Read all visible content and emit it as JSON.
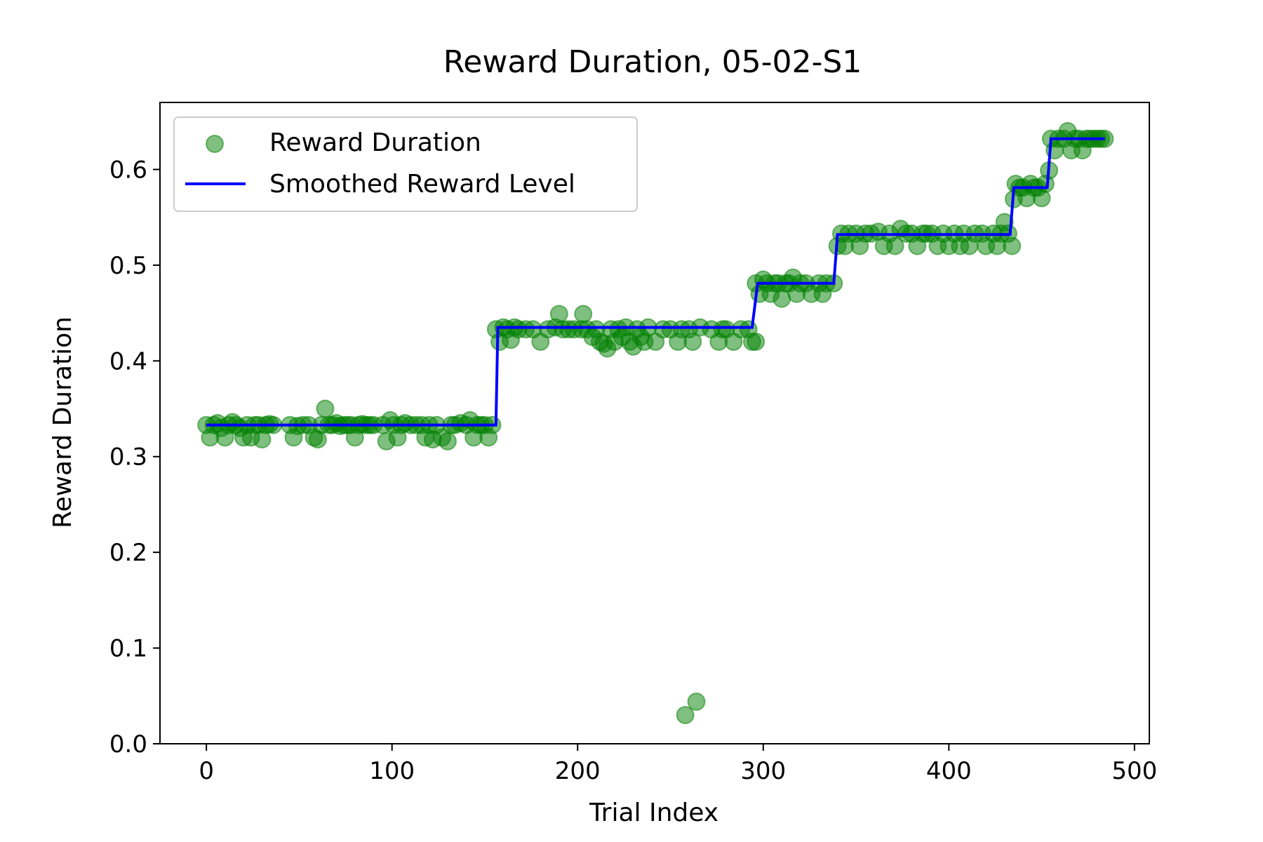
{
  "chart_data": {
    "type": "scatter",
    "title": "Reward Duration, 05-02-S1",
    "xlabel": "Trial Index",
    "ylabel": "Reward Duration",
    "xlim": [
      -25,
      508
    ],
    "ylim": [
      0.0,
      0.67
    ],
    "xticks": [
      0,
      100,
      200,
      300,
      400,
      500
    ],
    "yticks": [
      0.0,
      0.1,
      0.2,
      0.3,
      0.4,
      0.5,
      0.6
    ],
    "xtick_labels": [
      "0",
      "100",
      "200",
      "300",
      "400",
      "500"
    ],
    "ytick_labels": [
      "0.0",
      "0.1",
      "0.2",
      "0.3",
      "0.4",
      "0.5",
      "0.6"
    ],
    "grid": false,
    "legend": {
      "position": "top-left",
      "entries": [
        "Reward Duration",
        "Smoothed Reward Level"
      ]
    },
    "colors": {
      "scatter": "#008000",
      "line": "#0000ff"
    },
    "series": [
      {
        "name": "Reward Duration",
        "kind": "scatter",
        "points": [
          [
            0,
            0.333
          ],
          [
            2,
            0.32
          ],
          [
            4,
            0.333
          ],
          [
            6,
            0.335
          ],
          [
            8,
            0.33
          ],
          [
            10,
            0.32
          ],
          [
            12,
            0.333
          ],
          [
            14,
            0.336
          ],
          [
            16,
            0.333
          ],
          [
            18,
            0.33
          ],
          [
            20,
            0.32
          ],
          [
            22,
            0.333
          ],
          [
            24,
            0.32
          ],
          [
            26,
            0.333
          ],
          [
            28,
            0.333
          ],
          [
            30,
            0.318
          ],
          [
            32,
            0.333
          ],
          [
            34,
            0.334
          ],
          [
            36,
            0.333
          ],
          [
            45,
            0.333
          ],
          [
            47,
            0.32
          ],
          [
            49,
            0.332
          ],
          [
            52,
            0.333
          ],
          [
            55,
            0.333
          ],
          [
            58,
            0.32
          ],
          [
            60,
            0.318
          ],
          [
            62,
            0.333
          ],
          [
            64,
            0.35
          ],
          [
            66,
            0.333
          ],
          [
            68,
            0.333
          ],
          [
            70,
            0.335
          ],
          [
            72,
            0.332
          ],
          [
            74,
            0.333
          ],
          [
            76,
            0.333
          ],
          [
            78,
            0.333
          ],
          [
            80,
            0.32
          ],
          [
            82,
            0.333
          ],
          [
            84,
            0.334
          ],
          [
            86,
            0.333
          ],
          [
            88,
            0.333
          ],
          [
            90,
            0.333
          ],
          [
            95,
            0.333
          ],
          [
            97,
            0.316
          ],
          [
            99,
            0.338
          ],
          [
            101,
            0.333
          ],
          [
            103,
            0.32
          ],
          [
            105,
            0.333
          ],
          [
            107,
            0.335
          ],
          [
            110,
            0.333
          ],
          [
            113,
            0.333
          ],
          [
            116,
            0.333
          ],
          [
            118,
            0.32
          ],
          [
            120,
            0.333
          ],
          [
            122,
            0.318
          ],
          [
            124,
            0.333
          ],
          [
            127,
            0.32
          ],
          [
            130,
            0.316
          ],
          [
            132,
            0.333
          ],
          [
            134,
            0.333
          ],
          [
            137,
            0.335
          ],
          [
            140,
            0.333
          ],
          [
            142,
            0.338
          ],
          [
            144,
            0.32
          ],
          [
            146,
            0.333
          ],
          [
            148,
            0.333
          ],
          [
            150,
            0.333
          ],
          [
            152,
            0.32
          ],
          [
            154,
            0.333
          ],
          [
            156,
            0.433
          ],
          [
            158,
            0.42
          ],
          [
            160,
            0.435
          ],
          [
            162,
            0.433
          ],
          [
            164,
            0.422
          ],
          [
            166,
            0.435
          ],
          [
            168,
            0.433
          ],
          [
            172,
            0.433
          ],
          [
            176,
            0.433
          ],
          [
            180,
            0.42
          ],
          [
            184,
            0.433
          ],
          [
            188,
            0.435
          ],
          [
            190,
            0.449
          ],
          [
            192,
            0.433
          ],
          [
            195,
            0.433
          ],
          [
            198,
            0.433
          ],
          [
            202,
            0.433
          ],
          [
            203,
            0.449
          ],
          [
            205,
            0.433
          ],
          [
            208,
            0.425
          ],
          [
            210,
            0.433
          ],
          [
            212,
            0.42
          ],
          [
            214,
            0.418
          ],
          [
            216,
            0.413
          ],
          [
            218,
            0.433
          ],
          [
            220,
            0.42
          ],
          [
            222,
            0.433
          ],
          [
            224,
            0.425
          ],
          [
            226,
            0.435
          ],
          [
            228,
            0.42
          ],
          [
            230,
            0.415
          ],
          [
            232,
            0.433
          ],
          [
            234,
            0.425
          ],
          [
            236,
            0.42
          ],
          [
            238,
            0.435
          ],
          [
            242,
            0.42
          ],
          [
            246,
            0.433
          ],
          [
            250,
            0.433
          ],
          [
            254,
            0.42
          ],
          [
            256,
            0.433
          ],
          [
            258,
            0.03
          ],
          [
            260,
            0.433
          ],
          [
            262,
            0.42
          ],
          [
            264,
            0.044
          ],
          [
            266,
            0.435
          ],
          [
            272,
            0.433
          ],
          [
            276,
            0.42
          ],
          [
            278,
            0.433
          ],
          [
            280,
            0.433
          ],
          [
            284,
            0.42
          ],
          [
            288,
            0.433
          ],
          [
            292,
            0.433
          ],
          [
            294,
            0.42
          ],
          [
            296,
            0.42
          ],
          [
            296,
            0.481
          ],
          [
            298,
            0.47
          ],
          [
            300,
            0.485
          ],
          [
            302,
            0.481
          ],
          [
            304,
            0.47
          ],
          [
            306,
            0.481
          ],
          [
            308,
            0.481
          ],
          [
            310,
            0.465
          ],
          [
            312,
            0.481
          ],
          [
            314,
            0.481
          ],
          [
            316,
            0.487
          ],
          [
            318,
            0.47
          ],
          [
            320,
            0.481
          ],
          [
            323,
            0.481
          ],
          [
            326,
            0.47
          ],
          [
            330,
            0.481
          ],
          [
            332,
            0.47
          ],
          [
            334,
            0.481
          ],
          [
            338,
            0.481
          ],
          [
            340,
            0.52
          ],
          [
            342,
            0.533
          ],
          [
            344,
            0.52
          ],
          [
            346,
            0.533
          ],
          [
            350,
            0.533
          ],
          [
            352,
            0.52
          ],
          [
            355,
            0.533
          ],
          [
            358,
            0.533
          ],
          [
            362,
            0.535
          ],
          [
            365,
            0.52
          ],
          [
            368,
            0.533
          ],
          [
            371,
            0.52
          ],
          [
            374,
            0.538
          ],
          [
            377,
            0.533
          ],
          [
            380,
            0.533
          ],
          [
            383,
            0.52
          ],
          [
            386,
            0.533
          ],
          [
            388,
            0.533
          ],
          [
            391,
            0.533
          ],
          [
            394,
            0.52
          ],
          [
            397,
            0.533
          ],
          [
            400,
            0.52
          ],
          [
            403,
            0.533
          ],
          [
            406,
            0.52
          ],
          [
            408,
            0.533
          ],
          [
            411,
            0.52
          ],
          [
            414,
            0.533
          ],
          [
            418,
            0.533
          ],
          [
            420,
            0.52
          ],
          [
            424,
            0.533
          ],
          [
            426,
            0.52
          ],
          [
            428,
            0.533
          ],
          [
            430,
            0.545
          ],
          [
            432,
            0.533
          ],
          [
            434,
            0.52
          ],
          [
            435,
            0.569
          ],
          [
            436,
            0.585
          ],
          [
            438,
            0.581
          ],
          [
            440,
            0.581
          ],
          [
            442,
            0.57
          ],
          [
            444,
            0.585
          ],
          [
            446,
            0.581
          ],
          [
            448,
            0.581
          ],
          [
            450,
            0.57
          ],
          [
            452,
            0.585
          ],
          [
            454,
            0.599
          ],
          [
            455,
            0.632
          ],
          [
            457,
            0.62
          ],
          [
            459,
            0.632
          ],
          [
            462,
            0.632
          ],
          [
            464,
            0.64
          ],
          [
            466,
            0.62
          ],
          [
            468,
            0.632
          ],
          [
            470,
            0.632
          ],
          [
            472,
            0.62
          ],
          [
            474,
            0.632
          ],
          [
            476,
            0.632
          ],
          [
            478,
            0.632
          ],
          [
            480,
            0.632
          ],
          [
            482,
            0.632
          ],
          [
            484,
            0.632
          ]
        ]
      },
      {
        "name": "Smoothed Reward Level",
        "kind": "line",
        "points": [
          [
            0,
            0.333
          ],
          [
            156,
            0.333
          ],
          [
            157,
            0.435
          ],
          [
            294,
            0.435
          ],
          [
            297,
            0.481
          ],
          [
            338,
            0.481
          ],
          [
            340,
            0.532
          ],
          [
            433,
            0.532
          ],
          [
            435,
            0.581
          ],
          [
            453,
            0.581
          ],
          [
            455,
            0.632
          ],
          [
            484,
            0.632
          ]
        ]
      }
    ]
  }
}
